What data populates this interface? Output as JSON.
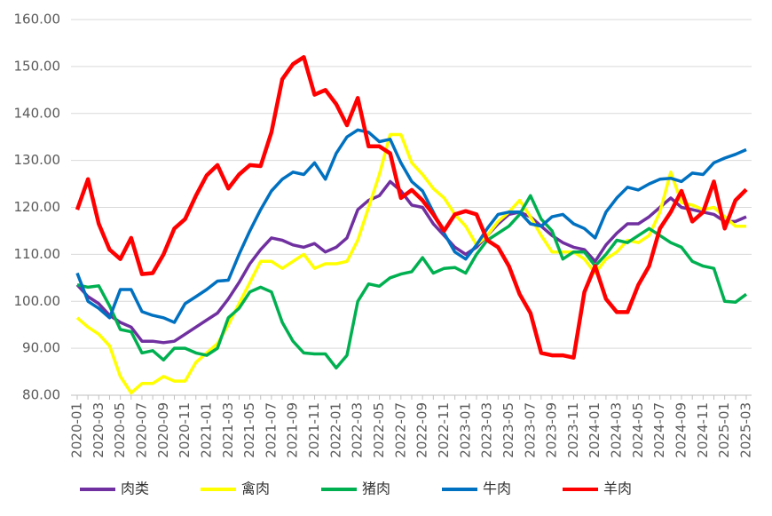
{
  "chart_data": {
    "type": "line",
    "categories": [
      "2020-01",
      null,
      "2020-03",
      null,
      "2020-05",
      null,
      "2020-07",
      null,
      "2020-09",
      null,
      "2020-11",
      null,
      "2021-01",
      null,
      "2021-03",
      null,
      "2021-05",
      null,
      "2021-07",
      null,
      "2021-09",
      null,
      "2021-11",
      null,
      "2022-01",
      null,
      "2022-03",
      null,
      "2022-05",
      null,
      "2022-07",
      null,
      "2022-09",
      null,
      "2022-11",
      null,
      "2023-01",
      null,
      "2023-03",
      null,
      "2023-05",
      null,
      "2023-07",
      null,
      "2023-09",
      null,
      "2023-11",
      null,
      "2024-01",
      null,
      "2024-03",
      null,
      "2024-05",
      null,
      "2024-07",
      null,
      "2024-09",
      null,
      "2024-11",
      null,
      "2025-01",
      null,
      "2025-03"
    ],
    "series": [
      {
        "name": "肉类",
        "color": "#7030a0",
        "values": [
          103.5,
          101,
          99.5,
          97,
          95.5,
          94.5,
          91.5,
          91.5,
          91.2,
          91.5,
          93,
          94.5,
          96,
          97.5,
          100.5,
          104,
          108,
          111,
          113.5,
          113,
          112,
          111.5,
          112.3,
          110.5,
          111.5,
          113.5,
          119.5,
          121.5,
          122.5,
          125.5,
          123.5,
          120.5,
          120,
          116.5,
          114,
          111.5,
          110,
          111.5,
          114,
          116.5,
          118.5,
          119,
          118,
          116,
          114,
          112.5,
          111.5,
          111,
          108.5,
          112,
          114.5,
          116.5,
          116.5,
          118,
          120,
          122,
          120,
          119.5,
          119,
          118.5,
          117,
          117,
          118
        ]
      },
      {
        "name": "禽肉",
        "color": "#ffff00",
        "values": [
          96.5,
          94.5,
          93,
          90.5,
          84,
          80.5,
          82.5,
          82.5,
          84,
          83,
          83,
          87,
          89,
          91,
          95,
          99.5,
          104,
          108.5,
          108.5,
          107,
          108.5,
          110,
          107,
          108,
          108,
          108.5,
          113,
          120,
          127,
          135.5,
          135.5,
          129.5,
          127,
          124,
          122,
          118.5,
          116,
          112,
          114,
          117,
          119,
          121.5,
          118,
          114,
          110.5,
          110.5,
          110.5,
          109,
          106,
          109,
          110.5,
          113,
          112.5,
          114,
          119,
          127.5,
          121,
          120.5,
          119.5,
          120,
          118,
          116,
          116
        ]
      },
      {
        "name": "猪肉",
        "color": "#00b050",
        "values": [
          103.5,
          103,
          103.3,
          99,
          94,
          93.5,
          89,
          89.5,
          87.5,
          90,
          90,
          89,
          88.5,
          90,
          96.5,
          98.5,
          102,
          103,
          102,
          95.5,
          91.5,
          89,
          88.8,
          88.8,
          85.8,
          88.5,
          100,
          103.7,
          103.2,
          105,
          105.8,
          106.3,
          109.3,
          106,
          107,
          107.2,
          106,
          110,
          113,
          114.5,
          116,
          118.5,
          122.5,
          117.5,
          115,
          109,
          110.5,
          110.5,
          107.5,
          110,
          113,
          112.5,
          114,
          115.5,
          114,
          112.5,
          111.5,
          108.5,
          107.5,
          107,
          100,
          99.8,
          101.5
        ]
      },
      {
        "name": "牛肉",
        "color": "#0070c0",
        "values": [
          106,
          100,
          98.5,
          96.5,
          102.5,
          102.5,
          97.8,
          97,
          96.5,
          95.5,
          99.5,
          101,
          102.5,
          104.3,
          104.5,
          110,
          115,
          119.5,
          123.5,
          126,
          127.5,
          127,
          129.5,
          126,
          131.5,
          135,
          136.5,
          136,
          134,
          134.5,
          129.5,
          125.5,
          123.5,
          119,
          114.5,
          110.5,
          109,
          112,
          115.5,
          118.5,
          119,
          119,
          116.5,
          116,
          118,
          118.5,
          116.5,
          115.5,
          113.5,
          119,
          122,
          124.3,
          123.7,
          125,
          126,
          126.2,
          125.5,
          127.3,
          127,
          129.5,
          130.5,
          131.3,
          132.3
        ]
      },
      {
        "name": "羊肉",
        "color": "#ff0000",
        "values": [
          119.5,
          126,
          116.5,
          111,
          109,
          113.5,
          105.8,
          106,
          110,
          115.5,
          117.5,
          122.5,
          126.8,
          129,
          124,
          127,
          129,
          128.8,
          136,
          147.3,
          150.5,
          152,
          144,
          145,
          142,
          137.5,
          143.3,
          133,
          133,
          131.5,
          122,
          123.7,
          121.5,
          118.5,
          115,
          118.5,
          119.2,
          118.5,
          113,
          111.5,
          107.5,
          101.5,
          97.5,
          89,
          88.5,
          88.5,
          88,
          102,
          107.5,
          100.5,
          97.7,
          97.7,
          103.5,
          107.5,
          115.5,
          119,
          123.5,
          117,
          119,
          125.5,
          115.5,
          121.5,
          123.8
        ]
      }
    ],
    "ylim": [
      80,
      160
    ],
    "yticks": [
      {
        "value": 80,
        "label": "80.00"
      },
      {
        "value": 90,
        "label": "90.00"
      },
      {
        "value": 100,
        "label": "100.00"
      },
      {
        "value": 110,
        "label": "110.00"
      },
      {
        "value": 120,
        "label": "120.00"
      },
      {
        "value": 130,
        "label": "130.00"
      },
      {
        "value": 140,
        "label": "140.00"
      },
      {
        "value": 150,
        "label": "150.00"
      },
      {
        "value": 160,
        "label": "160.00"
      }
    ],
    "grid": true,
    "legend": "bottom"
  }
}
